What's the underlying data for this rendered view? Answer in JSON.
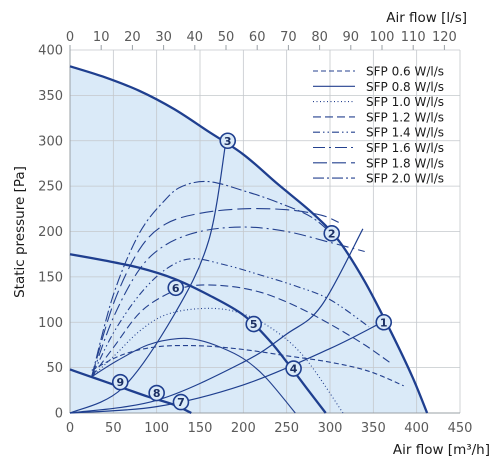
{
  "chart_data": {
    "type": "line",
    "title": "",
    "xlabel": "Air flow [m³/h]",
    "ylabel": "Static pressure [Pa]",
    "x2label": "Air flow [l/s]",
    "xlim": [
      0,
      450
    ],
    "ylim": [
      0,
      400
    ],
    "x2lim": [
      0,
      125
    ],
    "xticks": [
      0,
      50,
      100,
      150,
      200,
      250,
      300,
      350,
      400,
      450
    ],
    "yticks": [
      0,
      50,
      100,
      150,
      200,
      250,
      300,
      350,
      400
    ],
    "x2ticks": [
      0,
      10,
      20,
      30,
      40,
      50,
      60,
      70,
      80,
      90,
      100,
      110,
      120
    ],
    "grid": true,
    "legend_position": "top-right",
    "colors": {
      "fan_curve": "#1f3f8f",
      "sfp_curve": "#24418f",
      "operating_area": "#daeaf8",
      "grid": "#c4c8cc",
      "point_fill": "#daeaf8"
    },
    "operating_area": [
      [
        0,
        382
      ],
      [
        40,
        370
      ],
      [
        80,
        355
      ],
      [
        120,
        335
      ],
      [
        160,
        310
      ],
      [
        200,
        285
      ],
      [
        240,
        252
      ],
      [
        280,
        220
      ],
      [
        310,
        190
      ],
      [
        340,
        145
      ],
      [
        370,
        90
      ],
      [
        395,
        40
      ],
      [
        412,
        0
      ],
      [
        0,
        0
      ]
    ],
    "fan_curves": [
      {
        "id": "max",
        "x": [
          0,
          40,
          80,
          120,
          160,
          200,
          240,
          280,
          310,
          340,
          370,
          395,
          412
        ],
        "y": [
          382,
          370,
          355,
          335,
          310,
          285,
          252,
          220,
          190,
          145,
          90,
          40,
          0
        ]
      },
      {
        "id": "mid",
        "x": [
          0,
          40,
          80,
          120,
          160,
          200,
          230,
          255,
          275,
          295
        ],
        "y": [
          175,
          168,
          160,
          148,
          130,
          108,
          80,
          50,
          25,
          0
        ]
      },
      {
        "id": "low",
        "x": [
          0,
          30,
          60,
          90,
          120,
          140
        ],
        "y": [
          48,
          38,
          28,
          18,
          9,
          0
        ]
      }
    ],
    "system_curves": [
      {
        "x": [
          0,
          100,
          200,
          300,
          360
        ],
        "y": [
          0,
          7,
          31,
          71,
          100
        ]
      },
      {
        "x": [
          0,
          100,
          200,
          250,
          290,
          338
        ],
        "y": [
          0,
          14,
          56,
          87,
          118,
          203
        ]
      },
      {
        "x": [
          0,
          60,
          120,
          160,
          180
        ],
        "y": [
          0,
          27,
          108,
          190,
          300
        ]
      }
    ],
    "series": [
      {
        "name": "SFP 0.6 W/l/s",
        "dash": "5,3",
        "x": [
          25,
          60,
          100,
          150,
          200,
          250,
          300,
          345,
          385
        ],
        "y": [
          47,
          64,
          73,
          74,
          70,
          63,
          56,
          46,
          30
        ]
      },
      {
        "name": "SFP 0.8 W/l/s",
        "dash": "none",
        "x": [
          25,
          55,
          90,
          125,
          150,
          175,
          200,
          225,
          260
        ],
        "y": [
          40,
          58,
          75,
          82,
          80,
          72,
          60,
          40,
          0
        ]
      },
      {
        "name": "SFP 1.0 W/l/s",
        "dash": "1,2.5",
        "x": [
          25,
          50,
          80,
          110,
          150,
          190,
          230,
          270,
          315
        ],
        "y": [
          40,
          62,
          90,
          108,
          115,
          112,
          95,
          62,
          0
        ]
      },
      {
        "name": "SFP 1.2 W/l/s",
        "dash": "8,4",
        "x": [
          25,
          50,
          80,
          110,
          140,
          180,
          220,
          260,
          300,
          340,
          370
        ],
        "y": [
          40,
          72,
          110,
          130,
          140,
          140,
          133,
          118,
          98,
          75,
          55
        ]
      },
      {
        "name": "SFP 1.4 W/l/s",
        "dash": "7,3,1.5,3,1.5,3",
        "x": [
          25,
          50,
          80,
          110,
          140,
          180,
          220,
          260,
          300,
          345
        ],
        "y": [
          40,
          88,
          130,
          158,
          170,
          163,
          152,
          140,
          125,
          95
        ]
      },
      {
        "name": "SFP 1.6 W/l/s",
        "dash": "12,4,2,4",
        "x": [
          25,
          50,
          80,
          110,
          150,
          200,
          250,
          300,
          340
        ],
        "y": [
          40,
          105,
          158,
          185,
          200,
          205,
          200,
          188,
          178
        ]
      },
      {
        "name": "SFP 1.8 W/l/s",
        "dash": "14,5",
        "x": [
          25,
          50,
          80,
          110,
          150,
          200,
          250,
          290,
          310
        ],
        "y": [
          40,
          120,
          180,
          208,
          220,
          225,
          224,
          218,
          210
        ]
      },
      {
        "name": "SFP 2.0 W/l/s",
        "dash": "11,3,2,3",
        "x": [
          25,
          50,
          80,
          110,
          130,
          160,
          200,
          240,
          280,
          310
        ],
        "y": [
          40,
          130,
          198,
          235,
          250,
          255,
          245,
          232,
          215,
          190
        ]
      }
    ],
    "points": [
      {
        "label": "1",
        "x": 362,
        "y": 100
      },
      {
        "label": "2",
        "x": 302,
        "y": 198
      },
      {
        "label": "3",
        "x": 182,
        "y": 300
      },
      {
        "label": "4",
        "x": 258,
        "y": 49
      },
      {
        "label": "5",
        "x": 212,
        "y": 98
      },
      {
        "label": "6",
        "x": 122,
        "y": 138
      },
      {
        "label": "7",
        "x": 128,
        "y": 12
      },
      {
        "label": "8",
        "x": 100,
        "y": 22
      },
      {
        "label": "9",
        "x": 58,
        "y": 34
      }
    ]
  }
}
